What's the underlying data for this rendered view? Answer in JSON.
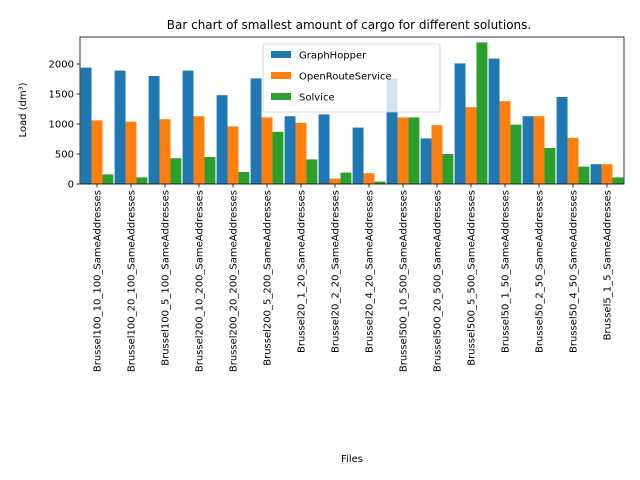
{
  "chart_data": {
    "type": "bar",
    "title": "Bar chart of smallest amount of cargo for different solutions.",
    "xlabel": "Files",
    "ylabel": "Load (dm³)",
    "ylim": [
      0,
      2450
    ],
    "yticks": [
      0,
      500,
      1000,
      1500,
      2000
    ],
    "legend_position": "top-center",
    "categories": [
      "Brussel100_10_100_SameAddresses",
      "Brussel100_20_100_SameAddresses",
      "Brussel100_5_100_SameAddresses",
      "Brussel200_10_200_SameAddresses",
      "Brussel200_20_200_SameAddresses",
      "Brussel200_5_200_SameAddresses",
      "Brussel20_1_20_SameAddresses",
      "Brussel20_2_20_SameAddresses",
      "Brussel20_4_20_SameAddresses",
      "Brussel500_10_500_SameAddresses",
      "Brussel500_20_500_SameAddresses",
      "Brussel500_5_500_SameAddresses",
      "Brussel50_1_50_SameAddresses",
      "Brussel50_2_50_SameAddresses",
      "Brussel50_4_50_SameAddresses",
      "Brussel5_1_5_SameAddresses"
    ],
    "series": [
      {
        "name": "GraphHopper",
        "color": "#1f77b4",
        "values": [
          1940,
          1890,
          1800,
          1890,
          1480,
          1760,
          1130,
          1160,
          940,
          1760,
          760,
          2010,
          2090,
          1130,
          1450,
          330
        ]
      },
      {
        "name": "OpenRouteService",
        "color": "#ff7f0e",
        "values": [
          1060,
          1040,
          1080,
          1130,
          960,
          1110,
          1020,
          90,
          180,
          1110,
          980,
          1280,
          1380,
          1130,
          770,
          330
        ]
      },
      {
        "name": "Solvice",
        "color": "#2ca02c",
        "values": [
          160,
          110,
          430,
          450,
          200,
          870,
          410,
          190,
          40,
          1110,
          500,
          2360,
          990,
          600,
          290,
          110
        ]
      }
    ]
  }
}
